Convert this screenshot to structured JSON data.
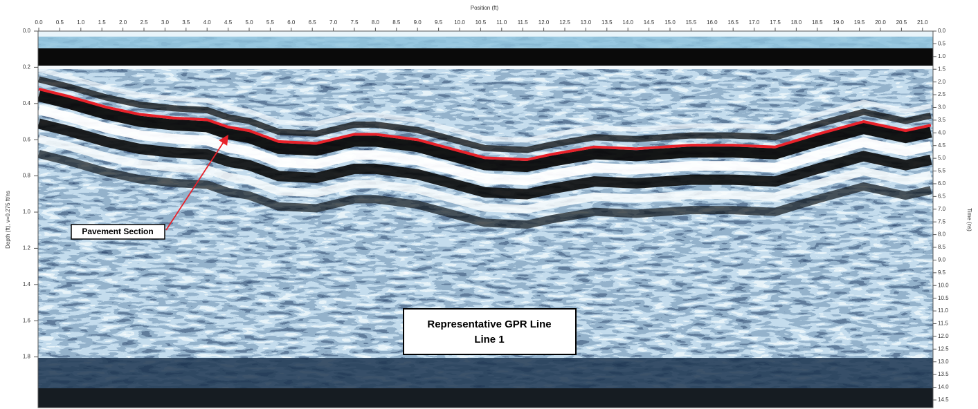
{
  "chart_data": {
    "type": "line",
    "xlabel": "Position (ft)",
    "ylabel": "Depth (ft), v=0.275 ft/ns",
    "y2label": "Time (ns)",
    "annotations": [
      "Pavement Section",
      "Representative GPR Line",
      "Line 1"
    ],
    "x": [
      0.0,
      0.7,
      1.6,
      2.4,
      3.2,
      4.0,
      4.5,
      5.0,
      5.7,
      6.6,
      7.5,
      8.0,
      9.0,
      9.8,
      10.6,
      11.6,
      12.2,
      13.2,
      14.2,
      15.5,
      16.5,
      17.5,
      18.5,
      19.6,
      20.6,
      21.2
    ],
    "values": [
      0.32,
      0.36,
      0.42,
      0.46,
      0.48,
      0.49,
      0.53,
      0.55,
      0.61,
      0.62,
      0.57,
      0.57,
      0.6,
      0.65,
      0.7,
      0.71,
      0.68,
      0.64,
      0.65,
      0.63,
      0.63,
      0.64,
      0.57,
      0.5,
      0.55,
      0.52
    ],
    "color": "#e8212a",
    "xlim": [
      0,
      21.25
    ],
    "ylim": [
      0,
      2.08
    ],
    "y_inverted": true,
    "y2lim": [
      0,
      14.8
    ],
    "xticks": [
      {
        "value": 0,
        "label": "0.0"
      },
      0.5,
      {
        "value": 1,
        "label": "1.0"
      },
      1.5,
      {
        "value": 2,
        "label": "2.0"
      },
      2.5,
      {
        "value": 3,
        "label": "3.0"
      },
      3.5,
      {
        "value": 4,
        "label": "4.0"
      },
      4.5,
      {
        "value": 5,
        "label": "5.0"
      },
      5.5,
      {
        "value": 6,
        "label": "6.0"
      },
      6.5,
      {
        "value": 7,
        "label": "7.0"
      },
      7.5,
      {
        "value": 8,
        "label": "8.0"
      },
      8.5,
      {
        "value": 9,
        "label": "9.0"
      },
      9.5,
      {
        "value": 10,
        "label": "10.0"
      },
      10.5,
      {
        "value": 11,
        "label": "11.0"
      },
      11.5,
      {
        "value": 12,
        "label": "12.0"
      },
      12.5,
      {
        "value": 13,
        "label": "13.0"
      },
      13.5,
      {
        "value": 14,
        "label": "14.0"
      },
      14.5,
      {
        "value": 15,
        "label": "15.0"
      },
      15.5,
      {
        "value": 16,
        "label": "16.0"
      },
      16.5,
      {
        "value": 17,
        "label": "17.0"
      },
      17.5,
      {
        "value": 18,
        "label": "18.0"
      },
      18.5,
      {
        "value": 19,
        "label": "19.0"
      },
      19.5,
      {
        "value": 20,
        "label": "20.0"
      },
      20.5,
      {
        "value": 21,
        "label": "21.0"
      }
    ],
    "yticks": [
      {
        "value": 0,
        "label": "0.0"
      },
      0.2,
      0.4,
      0.6,
      0.8,
      {
        "value": 1,
        "label": "1.0"
      },
      1.2,
      1.4,
      1.6,
      1.8
    ],
    "y2ticks": [
      {
        "value": 0,
        "label": "0.0"
      },
      0.5,
      {
        "value": 1,
        "label": "1.0"
      },
      1.5,
      {
        "value": 2,
        "label": "2.0"
      },
      2.5,
      {
        "value": 3,
        "label": "3.0"
      },
      3.5,
      {
        "value": 4,
        "label": "4.0"
      },
      4.5,
      {
        "value": 5,
        "label": "5.0"
      },
      5.5,
      {
        "value": 6,
        "label": "6.0"
      },
      6.5,
      {
        "value": 7,
        "label": "7.0"
      },
      7.5,
      {
        "value": 8,
        "label": "8.0"
      },
      8.5,
      {
        "value": 9,
        "label": "9.0"
      },
      9.5,
      {
        "value": 10,
        "label": "10.0"
      },
      10.5,
      {
        "value": 11,
        "label": "11.0"
      },
      11.5,
      {
        "value": 12,
        "label": "12.0"
      },
      12.5,
      {
        "value": 13,
        "label": "13.0"
      },
      13.5,
      {
        "value": 14,
        "label": "14.0"
      },
      14.5
    ]
  }
}
